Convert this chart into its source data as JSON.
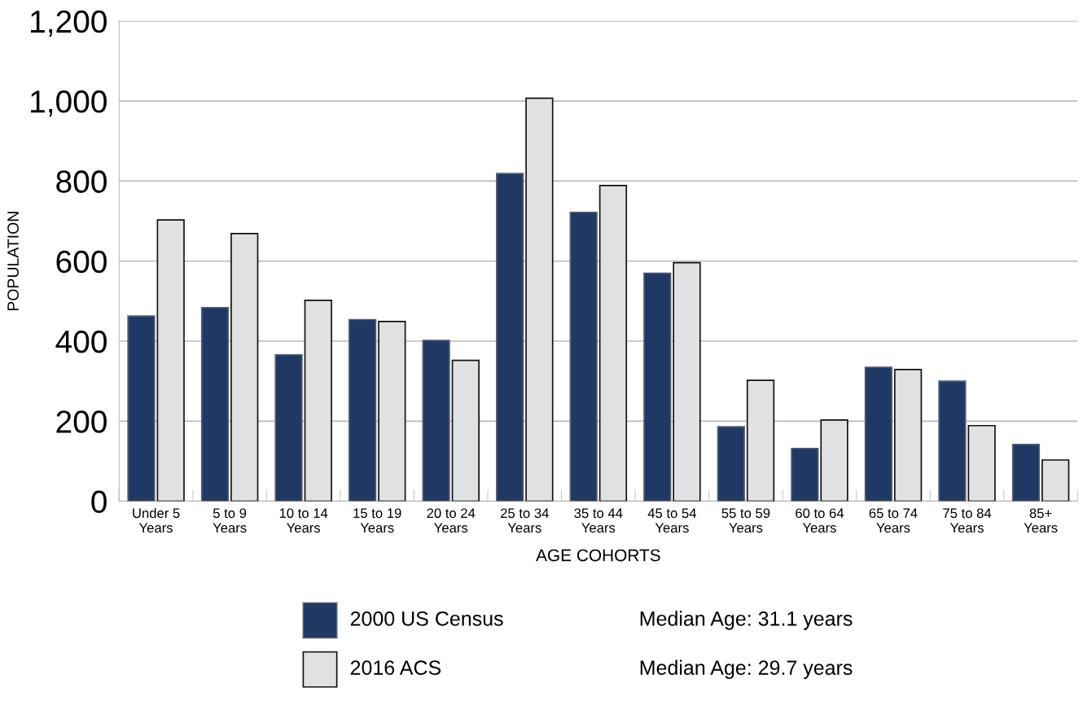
{
  "chart_data": {
    "type": "bar",
    "xlabel": "AGE COHORTS",
    "ylabel": "POPULATION",
    "categories": [
      "Under 5\nYears",
      "5 to 9\nYears",
      "10 to 14\nYears",
      "15 to 19\nYears",
      "20 to 24\nYears",
      "25 to 34\nYears",
      "35 to 44\nYears",
      "45 to 54\nYears",
      "55 to 59\nYears",
      "60 to 64\nYears",
      "65 to 74\nYears",
      "75 to 84\nYears",
      "85+\nYears"
    ],
    "series": [
      {
        "name": "2000 US Census",
        "color": "#203864",
        "values": [
          463,
          484,
          366,
          454,
          402,
          819,
          722,
          570,
          186,
          132,
          335,
          300,
          142
        ]
      },
      {
        "name": "2016 ACS",
        "color": "#e0e1e3",
        "values": [
          703,
          669,
          502,
          449,
          352,
          1007,
          789,
          596,
          302,
          203,
          329,
          189,
          103
        ]
      }
    ],
    "ylim": [
      0,
      1200
    ],
    "yticks": [
      0,
      200,
      400,
      600,
      800,
      {
        "value": 1000,
        "label": "1,000"
      },
      {
        "value": 1200,
        "label": "1,200"
      }
    ],
    "grid": "y",
    "legend": "bottom",
    "annotations": [
      "Median Age: 31.1 years",
      "Median Age: 29.7 years"
    ]
  }
}
